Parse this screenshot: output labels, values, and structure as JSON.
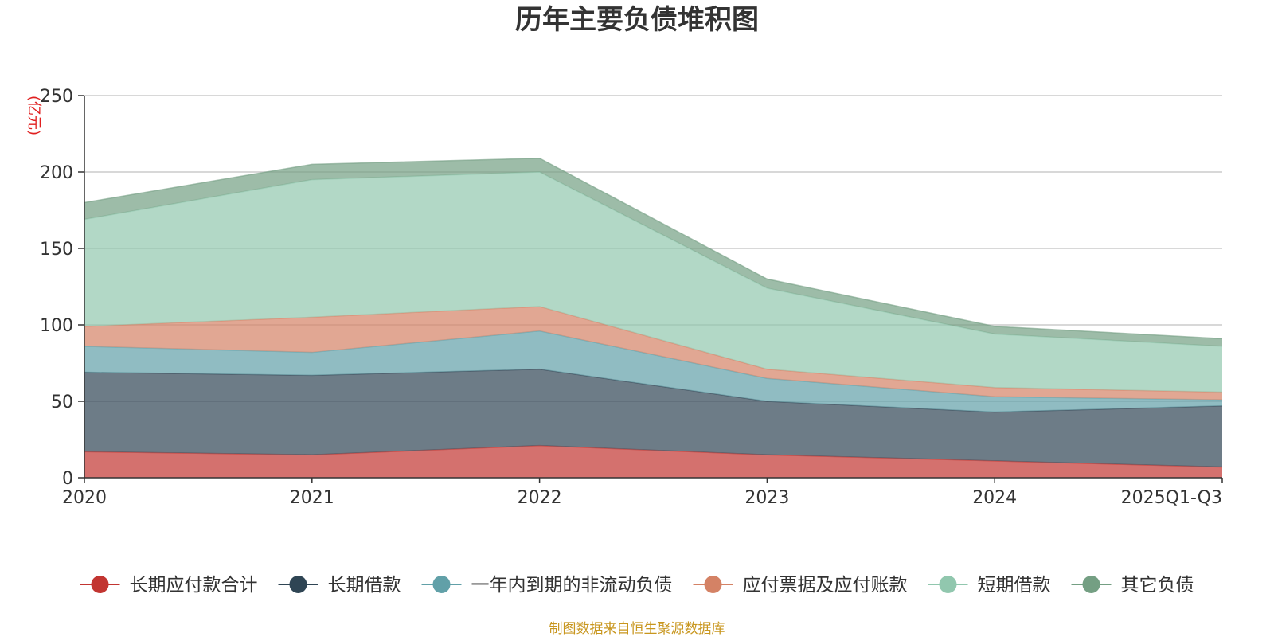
{
  "chart_data": {
    "type": "area",
    "stacked": true,
    "title": "历年主要负债堆积图",
    "ylabel": "(亿元)",
    "xlabel": "",
    "categories": [
      "2020",
      "2021",
      "2022",
      "2023",
      "2024",
      "2025Q1-Q3"
    ],
    "ylim": [
      0,
      250
    ],
    "yticks": [
      0,
      50,
      100,
      150,
      200,
      250
    ],
    "grid": true,
    "legend_position": "bottom",
    "series": [
      {
        "name": "长期应付款合计",
        "color": "#c23531",
        "values": [
          17,
          15,
          21,
          15,
          11,
          7
        ]
      },
      {
        "name": "长期借款",
        "color": "#2f4554",
        "values": [
          52,
          52,
          50,
          35,
          32,
          40
        ]
      },
      {
        "name": "一年内到期的非流动负债",
        "color": "#61a0a8",
        "values": [
          17,
          15,
          25,
          15,
          10,
          4
        ]
      },
      {
        "name": "应付票据及应付账款",
        "color": "#d48265",
        "values": [
          13,
          23,
          16,
          6,
          6,
          5
        ]
      },
      {
        "name": "短期借款",
        "color": "#91c7ae",
        "values": [
          70,
          90,
          88,
          53,
          35,
          30
        ]
      },
      {
        "name": "其它负债",
        "color": "#749f83",
        "values": [
          11,
          10,
          9,
          6,
          5,
          5
        ]
      }
    ]
  },
  "footer": {
    "source": "制图数据来自恒生聚源数据库"
  }
}
